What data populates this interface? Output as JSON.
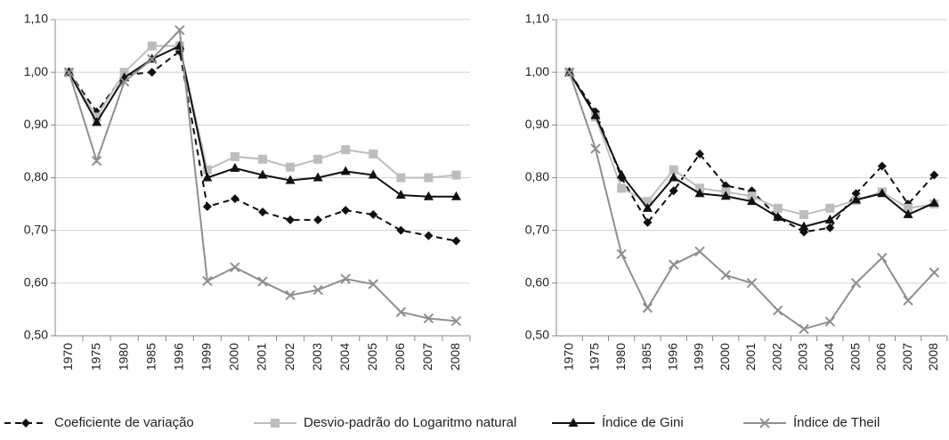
{
  "chart_data": [
    {
      "type": "line",
      "categories": [
        "1970",
        "1975",
        "1980",
        "1985",
        "1996",
        "1999",
        "2000",
        "2001",
        "2002",
        "2003",
        "2004",
        "2005",
        "2006",
        "2007",
        "2008"
      ],
      "ylim": [
        0.5,
        1.1
      ],
      "yticks": [
        {
          "value": 0.5,
          "label": "0,50"
        },
        {
          "value": 0.6,
          "label": "0,60"
        },
        {
          "value": 0.7,
          "label": "0,70"
        },
        {
          "value": 0.8,
          "label": "0,80"
        },
        {
          "value": 0.9,
          "label": "0,90"
        },
        {
          "value": 1.0,
          "label": "1,00"
        },
        {
          "value": 1.1,
          "label": "1,10"
        }
      ],
      "grid": true,
      "series": [
        {
          "name": "Coeficiente de variação",
          "color": "#111111",
          "dash": true,
          "marker": "diamond",
          "values": [
            1.0,
            0.925,
            0.995,
            1.0,
            1.04,
            0.745,
            0.76,
            0.735,
            0.72,
            0.72,
            0.738,
            0.73,
            0.7,
            0.69,
            0.68
          ]
        },
        {
          "name": "Desvio-padrão do Logaritmo natural",
          "color": "#bdbdbd",
          "dash": false,
          "marker": "square",
          "values": [
            1.0,
            0.915,
            1.0,
            1.05,
            1.05,
            0.815,
            0.84,
            0.835,
            0.82,
            0.835,
            0.853,
            0.845,
            0.8,
            0.8,
            0.805
          ]
        },
        {
          "name": "Índice de Gini",
          "color": "#111111",
          "dash": false,
          "marker": "triangle",
          "values": [
            1.0,
            0.905,
            0.99,
            1.025,
            1.05,
            0.8,
            0.818,
            0.805,
            0.795,
            0.8,
            0.812,
            0.805,
            0.767,
            0.764,
            0.764
          ]
        },
        {
          "name": "Índice de Theil",
          "color": "#8f8f8f",
          "dash": false,
          "marker": "cross",
          "values": [
            1.0,
            0.832,
            0.982,
            1.025,
            1.08,
            0.604,
            0.63,
            0.603,
            0.577,
            0.587,
            0.608,
            0.598,
            0.545,
            0.533,
            0.528
          ]
        }
      ]
    },
    {
      "type": "line",
      "categories": [
        "1970",
        "1975",
        "1980",
        "1985",
        "1996",
        "1999",
        "2000",
        "2001",
        "2002",
        "2003",
        "2004",
        "2005",
        "2006",
        "2007",
        "2008"
      ],
      "ylim": [
        0.5,
        1.1
      ],
      "yticks": [
        {
          "value": 0.5,
          "label": "0,50"
        },
        {
          "value": 0.6,
          "label": "0,60"
        },
        {
          "value": 0.7,
          "label": "0,70"
        },
        {
          "value": 0.8,
          "label": "0,80"
        },
        {
          "value": 0.9,
          "label": "0,90"
        },
        {
          "value": 1.0,
          "label": "1,00"
        },
        {
          "value": 1.1,
          "label": "1,10"
        }
      ],
      "grid": true,
      "series": [
        {
          "color": "#111111",
          "dash": true,
          "marker": "diamond",
          "values": [
            1.0,
            0.925,
            0.8,
            0.715,
            0.775,
            0.845,
            0.785,
            0.775,
            0.725,
            0.697,
            0.705,
            0.77,
            0.822,
            0.75,
            0.805
          ]
        },
        {
          "color": "#bdbdbd",
          "dash": false,
          "marker": "square",
          "values": [
            1.0,
            0.915,
            0.78,
            0.755,
            0.815,
            0.78,
            0.773,
            0.765,
            0.742,
            0.73,
            0.742,
            0.757,
            0.773,
            0.742,
            0.75
          ]
        },
        {
          "color": "#111111",
          "dash": false,
          "marker": "triangle",
          "values": [
            1.0,
            0.918,
            0.805,
            0.742,
            0.8,
            0.77,
            0.765,
            0.755,
            0.725,
            0.707,
            0.72,
            0.758,
            0.77,
            0.73,
            0.752
          ]
        },
        {
          "color": "#8f8f8f",
          "dash": false,
          "marker": "cross",
          "values": [
            1.0,
            0.855,
            0.655,
            0.553,
            0.635,
            0.66,
            0.615,
            0.6,
            0.548,
            0.513,
            0.527,
            0.6,
            0.648,
            0.567,
            0.62
          ]
        }
      ]
    }
  ]
}
